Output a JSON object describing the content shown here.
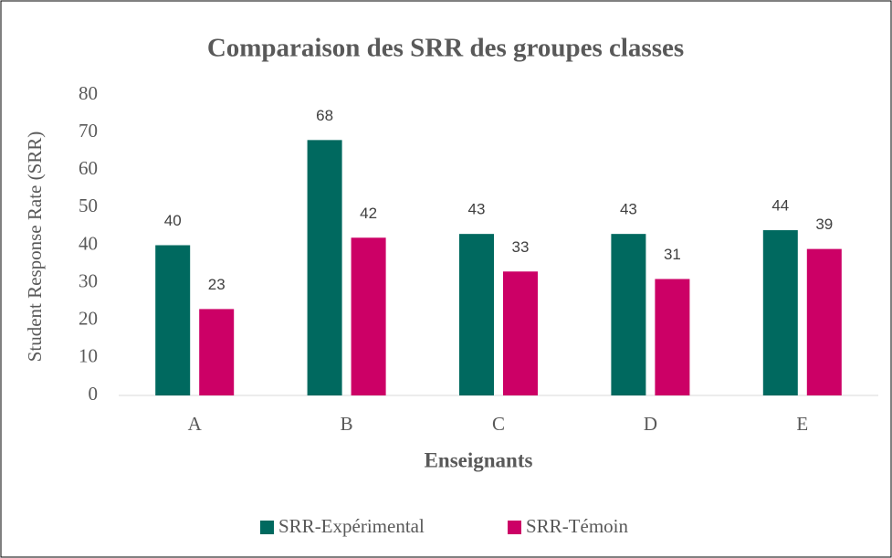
{
  "chart_data": {
    "type": "bar",
    "title": "Comparaison des SRR des groupes classes",
    "x_label": "Enseignants",
    "y_label": "Student Response Rate (SRR)",
    "categories": [
      "A",
      "B",
      "C",
      "D",
      "E"
    ],
    "series": [
      {
        "name": "SRR-Expérimental",
        "color": "#00695f",
        "values": [
          40,
          68,
          43,
          43,
          44
        ]
      },
      {
        "name": "SRR-Témoin",
        "color": "#cc0066",
        "values": [
          23,
          42,
          33,
          31,
          39
        ]
      }
    ],
    "ylim": [
      0,
      80
    ],
    "yticks": [
      0,
      10,
      20,
      30,
      40,
      50,
      60,
      70,
      80
    ],
    "grid": false,
    "legend": "bottom"
  }
}
